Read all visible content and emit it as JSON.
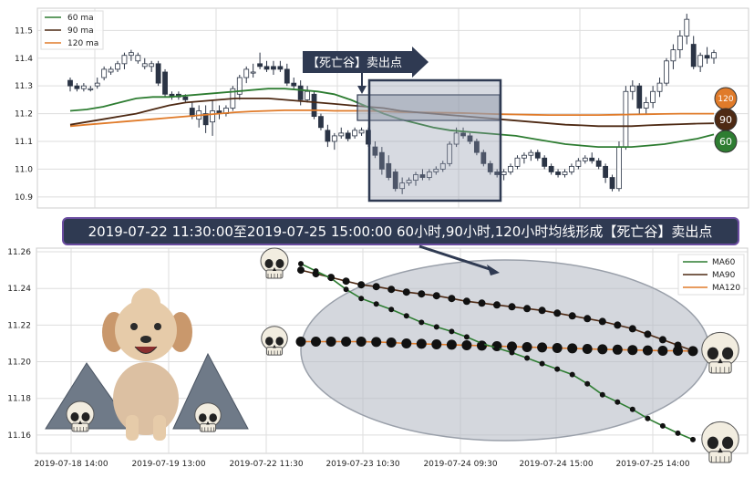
{
  "colors": {
    "ma60": "#2e7d32",
    "ma90": "#4e2a14",
    "ma120": "#e07b2a",
    "candle_up": "#ffffff",
    "candle_down": "#2b3445",
    "banner_bg": "#2f3a52",
    "panel_bg": "#ffffff",
    "grid": "#dddddd"
  },
  "chart_data": [
    {
      "type": "line",
      "subtype": "candlestick with moving averages",
      "legend": [
        "60 ma",
        "90 ma",
        "120 ma"
      ],
      "legend_position": "top-left",
      "ylim": [
        10.86,
        11.58
      ],
      "yticks": [
        "10.9",
        "11.0",
        "11.1",
        "11.2",
        "11.3",
        "11.4",
        "11.5"
      ],
      "ytick_values": [
        10.9,
        11.0,
        11.1,
        11.2,
        11.3,
        11.4,
        11.5
      ],
      "grid": true,
      "annotation": "【死亡谷】卖出点",
      "end_badges": [
        {
          "label": "120",
          "value": 11.2
        },
        {
          "label": "90",
          "value": 11.165
        },
        {
          "label": "60",
          "value": 11.125
        }
      ],
      "candles_ohlc": [
        [
          11.32,
          11.33,
          11.28,
          11.3
        ],
        [
          11.3,
          11.31,
          11.28,
          11.29
        ],
        [
          11.29,
          11.31,
          11.28,
          11.3
        ],
        [
          11.29,
          11.3,
          11.28,
          11.29
        ],
        [
          11.3,
          11.33,
          11.29,
          11.31
        ],
        [
          11.33,
          11.37,
          11.32,
          11.36
        ],
        [
          11.35,
          11.37,
          11.34,
          11.36
        ],
        [
          11.36,
          11.39,
          11.35,
          11.38
        ],
        [
          11.38,
          11.42,
          11.36,
          11.41
        ],
        [
          11.41,
          11.43,
          11.39,
          11.42
        ],
        [
          11.39,
          11.42,
          11.38,
          11.41
        ],
        [
          11.37,
          11.4,
          11.36,
          11.38
        ],
        [
          11.37,
          11.39,
          11.35,
          11.38
        ],
        [
          11.38,
          11.39,
          11.3,
          11.31
        ],
        [
          11.35,
          11.36,
          11.26,
          11.27
        ],
        [
          11.27,
          11.28,
          11.25,
          11.26
        ],
        [
          11.27,
          11.28,
          11.25,
          11.26
        ],
        [
          11.26,
          11.27,
          11.24,
          11.25
        ],
        [
          11.22,
          11.24,
          11.18,
          11.19
        ],
        [
          11.18,
          11.23,
          11.15,
          11.21
        ],
        [
          11.2,
          11.23,
          11.13,
          11.16
        ],
        [
          11.17,
          11.25,
          11.12,
          11.21
        ],
        [
          11.21,
          11.23,
          11.18,
          11.2
        ],
        [
          11.2,
          11.23,
          11.19,
          11.22
        ],
        [
          11.22,
          11.3,
          11.21,
          11.29
        ],
        [
          11.27,
          11.34,
          11.25,
          11.33
        ],
        [
          11.33,
          11.37,
          11.31,
          11.36
        ],
        [
          11.35,
          11.38,
          11.33,
          11.35
        ],
        [
          11.38,
          11.42,
          11.36,
          11.37
        ],
        [
          11.37,
          11.39,
          11.35,
          11.36
        ],
        [
          11.37,
          11.39,
          11.34,
          11.36
        ],
        [
          11.37,
          11.39,
          11.35,
          11.36
        ],
        [
          11.36,
          11.38,
          11.3,
          11.31
        ],
        [
          11.31,
          11.33,
          11.29,
          11.3
        ],
        [
          11.3,
          11.32,
          11.23,
          11.25
        ],
        [
          11.25,
          11.3,
          11.24,
          11.28
        ],
        [
          11.27,
          11.28,
          11.18,
          11.19
        ],
        [
          11.19,
          11.2,
          11.14,
          11.15
        ],
        [
          11.14,
          11.16,
          11.08,
          11.1
        ],
        [
          11.1,
          11.13,
          11.07,
          11.12
        ],
        [
          11.12,
          11.15,
          11.11,
          11.13
        ],
        [
          11.13,
          11.14,
          11.1,
          11.11
        ],
        [
          11.12,
          11.15,
          11.11,
          11.14
        ],
        [
          11.13,
          11.15,
          11.12,
          11.14
        ],
        [
          11.14,
          11.15,
          11.08,
          11.09
        ],
        [
          11.08,
          11.1,
          11.04,
          11.05
        ],
        [
          11.06,
          11.08,
          10.98,
          11.0
        ],
        [
          11.02,
          11.05,
          10.96,
          10.97
        ],
        [
          10.99,
          11.0,
          10.92,
          10.93
        ],
        [
          10.93,
          10.97,
          10.91,
          10.95
        ],
        [
          10.95,
          10.97,
          10.94,
          10.96
        ],
        [
          10.96,
          10.99,
          10.94,
          10.98
        ],
        [
          10.98,
          11.0,
          10.96,
          10.97
        ],
        [
          10.97,
          11.0,
          10.96,
          10.99
        ],
        [
          10.99,
          11.01,
          10.98,
          11.0
        ],
        [
          11.0,
          11.03,
          10.99,
          11.02
        ],
        [
          11.02,
          11.1,
          11.01,
          11.09
        ],
        [
          11.09,
          11.15,
          11.08,
          11.13
        ],
        [
          11.13,
          11.15,
          11.11,
          11.12
        ],
        [
          11.12,
          11.13,
          11.09,
          11.1
        ],
        [
          11.1,
          11.11,
          11.05,
          11.06
        ],
        [
          11.06,
          11.07,
          11.01,
          11.02
        ],
        [
          11.02,
          11.03,
          10.98,
          10.99
        ],
        [
          10.99,
          11.0,
          10.97,
          10.98
        ],
        [
          10.98,
          11.0,
          10.96,
          10.99
        ],
        [
          10.99,
          11.02,
          10.98,
          11.01
        ],
        [
          11.01,
          11.05,
          11.0,
          11.04
        ],
        [
          11.04,
          11.06,
          11.02,
          11.05
        ],
        [
          11.05,
          11.07,
          11.03,
          11.06
        ],
        [
          11.06,
          11.07,
          11.03,
          11.04
        ],
        [
          11.04,
          11.05,
          11.0,
          11.01
        ],
        [
          11.01,
          11.02,
          10.98,
          10.99
        ],
        [
          10.99,
          11.0,
          10.97,
          10.98
        ],
        [
          10.98,
          11.0,
          10.97,
          10.99
        ],
        [
          10.99,
          11.02,
          10.98,
          11.01
        ],
        [
          11.01,
          11.04,
          11.0,
          11.03
        ],
        [
          11.03,
          11.05,
          11.02,
          11.04
        ],
        [
          11.04,
          11.06,
          11.02,
          11.03
        ],
        [
          11.03,
          11.04,
          11.0,
          11.01
        ],
        [
          11.01,
          11.02,
          10.95,
          10.97
        ],
        [
          10.97,
          10.98,
          10.92,
          10.93
        ],
        [
          10.93,
          11.1,
          10.92,
          11.08
        ],
        [
          11.08,
          11.3,
          11.07,
          11.28
        ],
        [
          11.28,
          11.32,
          11.25,
          11.3
        ],
        [
          11.3,
          11.31,
          11.2,
          11.22
        ],
        [
          11.22,
          11.26,
          11.2,
          11.24
        ],
        [
          11.24,
          11.3,
          11.22,
          11.28
        ],
        [
          11.28,
          11.33,
          11.26,
          11.31
        ],
        [
          11.31,
          11.4,
          11.3,
          11.39
        ],
        [
          11.39,
          11.45,
          11.36,
          11.43
        ],
        [
          11.43,
          11.5,
          11.4,
          11.48
        ],
        [
          11.48,
          11.56,
          11.45,
          11.54
        ],
        [
          11.45,
          11.48,
          11.36,
          11.37
        ],
        [
          11.37,
          11.42,
          11.35,
          11.41
        ],
        [
          11.41,
          11.44,
          11.38,
          11.4
        ],
        [
          11.4,
          11.43,
          11.38,
          11.42
        ]
      ],
      "ma60": [
        11.21,
        11.215,
        11.225,
        11.24,
        11.255,
        11.26,
        11.26,
        11.265,
        11.27,
        11.275,
        11.28,
        11.285,
        11.29,
        11.29,
        11.285,
        11.28,
        11.27,
        11.25,
        11.225,
        11.2,
        11.18,
        11.165,
        11.15,
        11.14,
        11.135,
        11.13,
        11.125,
        11.12,
        11.11,
        11.1,
        11.09,
        11.085,
        11.08,
        11.08,
        11.08,
        11.085,
        11.09,
        11.1,
        11.11,
        11.125
      ],
      "ma90": [
        11.16,
        11.17,
        11.18,
        11.19,
        11.2,
        11.215,
        11.23,
        11.24,
        11.245,
        11.25,
        11.255,
        11.255,
        11.255,
        11.25,
        11.245,
        11.24,
        11.235,
        11.23,
        11.225,
        11.22,
        11.21,
        11.205,
        11.2,
        11.195,
        11.19,
        11.185,
        11.18,
        11.175,
        11.17,
        11.165,
        11.16,
        11.158,
        11.155,
        11.155,
        11.155,
        11.158,
        11.16,
        11.162,
        11.164,
        11.165
      ],
      "ma120": [
        11.155,
        11.16,
        11.165,
        11.17,
        11.175,
        11.18,
        11.185,
        11.19,
        11.195,
        11.2,
        11.205,
        11.208,
        11.21,
        11.212,
        11.212,
        11.212,
        11.21,
        11.21,
        11.21,
        11.208,
        11.206,
        11.205,
        11.204,
        11.203,
        11.202,
        11.2,
        11.198,
        11.197,
        11.196,
        11.195,
        11.195,
        11.195,
        11.195,
        11.196,
        11.197,
        11.198,
        11.199,
        11.2,
        11.2,
        11.2
      ]
    },
    {
      "type": "line",
      "title": "2019-07-22 11:30:00至2019-07-25 15:00:00 60小时,90小时,120小时均线形成【死亡谷】卖出点",
      "legend_position": "top-right",
      "ylim": [
        11.15,
        11.262
      ],
      "yticks": [
        "11.16",
        "11.18",
        "11.20",
        "11.22",
        "11.24",
        "11.26"
      ],
      "ytick_values": [
        11.16,
        11.18,
        11.2,
        11.22,
        11.24,
        11.26
      ],
      "xtick_labels": [
        "2019-07-18 14:00",
        "2019-07-19 13:00",
        "2019-07-22 11:30",
        "2019-07-23 10:30",
        "2019-07-24 09:30",
        "2019-07-24 15:00",
        "2019-07-25 14:00"
      ],
      "grid": true,
      "series": [
        {
          "name": "MA60",
          "values": [
            11.2535,
            11.2495,
            11.2455,
            11.2395,
            11.2345,
            11.2315,
            11.2285,
            11.225,
            11.2215,
            11.219,
            11.2165,
            11.2135,
            11.21,
            11.2075,
            11.205,
            11.202,
            11.199,
            11.196,
            11.193,
            11.188,
            11.182,
            11.178,
            11.174,
            11.169,
            11.165,
            11.161,
            11.1575
          ]
        },
        {
          "name": "MA90",
          "values": [
            11.25,
            11.248,
            11.246,
            11.244,
            11.242,
            11.241,
            11.2395,
            11.238,
            11.237,
            11.236,
            11.2345,
            11.233,
            11.232,
            11.231,
            11.23,
            11.229,
            11.228,
            11.2265,
            11.225,
            11.2235,
            11.222,
            11.22,
            11.218,
            11.215,
            11.212,
            11.209,
            11.206
          ]
        },
        {
          "name": "MA120",
          "values": [
            11.211,
            11.211,
            11.211,
            11.211,
            11.211,
            11.2108,
            11.2105,
            11.21,
            11.2098,
            11.2095,
            11.2093,
            11.209,
            11.2088,
            11.2085,
            11.2083,
            11.208,
            11.2078,
            11.2075,
            11.2073,
            11.207,
            11.2068,
            11.2066,
            11.2064,
            11.2062,
            11.206,
            11.206,
            11.2058
          ]
        }
      ]
    }
  ]
}
